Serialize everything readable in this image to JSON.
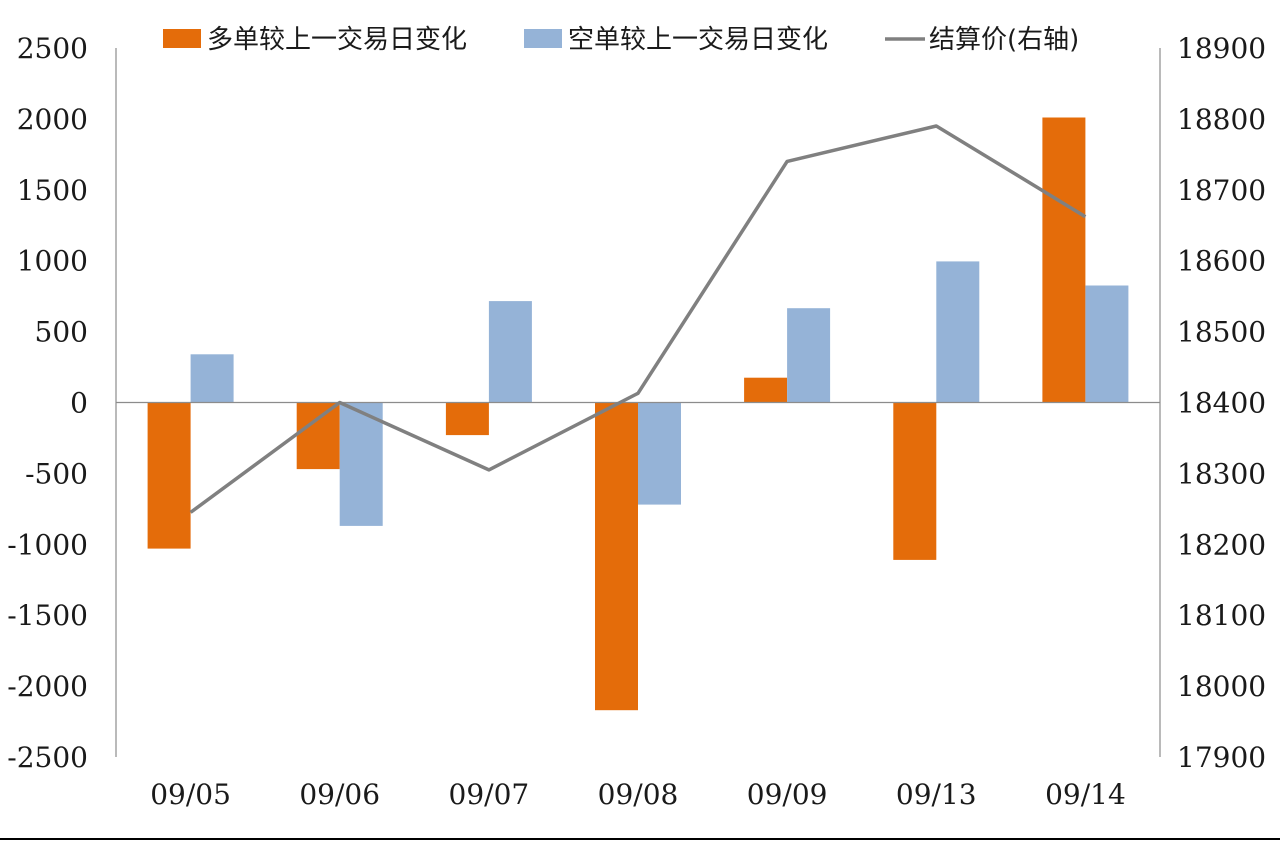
{
  "chart_data": {
    "type": "bar",
    "categories": [
      "09/05",
      "09/06",
      "09/07",
      "09/08",
      "09/09",
      "09/13",
      "09/14"
    ],
    "series": [
      {
        "name": "多单较上一交易日变化",
        "type": "bar",
        "axis": "left",
        "color": "#E46C0A",
        "values": [
          -1030,
          -470,
          -230,
          -2170,
          175,
          -1110,
          2010
        ]
      },
      {
        "name": "空单较上一交易日变化",
        "type": "bar",
        "axis": "left",
        "color": "#95B3D7",
        "values": [
          340,
          -870,
          715,
          -720,
          665,
          995,
          825
        ]
      },
      {
        "name": "结算价(右轴)",
        "type": "line",
        "axis": "right",
        "color": "#808080",
        "values": [
          18245,
          18400,
          18305,
          18413,
          18740,
          18790,
          18662
        ]
      }
    ],
    "y_left": {
      "min": -2500,
      "max": 2500,
      "ticks": [
        2500,
        2000,
        1500,
        1000,
        500,
        0,
        -500,
        -1000,
        -1500,
        -2000,
        -2500
      ],
      "tick_labels": [
        "2500",
        "2000",
        "1500",
        "1000",
        "500",
        "0",
        "-500",
        "-1000",
        "-1500",
        "-2000",
        "-2500"
      ]
    },
    "y_right": {
      "min": 17900,
      "max": 18900,
      "ticks": [
        18900,
        18800,
        18700,
        18600,
        18500,
        18400,
        18300,
        18200,
        18100,
        18000,
        17900
      ],
      "tick_labels": [
        "18900",
        "18800",
        "18700",
        "18600",
        "18500",
        "18400",
        "18300",
        "18200",
        "18100",
        "18000",
        "17900"
      ]
    },
    "legend_position": "top",
    "grid": false
  }
}
